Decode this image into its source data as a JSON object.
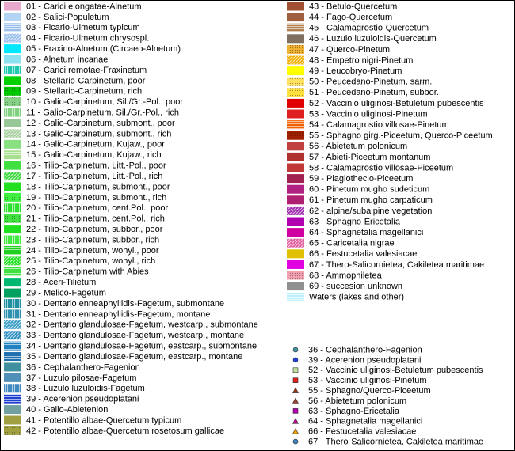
{
  "left_column": [
    {
      "label": "01 - Carici elongatae-Alnetum",
      "color": "#e8a8cc"
    },
    {
      "label": "02 - Salici-Populetum",
      "color": "#b4d4f4"
    },
    {
      "label": "03 - Ficario-Ulmetum typicum",
      "color": "#9cc0ee",
      "pattern": "h"
    },
    {
      "label": "04 - Ficario-Ulmetum chrysospl.",
      "color": "#9cc0ee",
      "pattern": "d"
    },
    {
      "label": "05 - Fraxino-Alnetum (Circaeo-Alnetum)",
      "color": "#00e8ff"
    },
    {
      "label": "06 - Alnetum incanae",
      "color": "#8ce0f0"
    },
    {
      "label": "07 - Carici remotae-Fraxinetum",
      "color": "#20c8b0",
      "pattern": "v"
    },
    {
      "label": "08 - Stellario-Carpinetum, poor",
      "color": "#00d000"
    },
    {
      "label": "09 - Stellario-Carpinetum, rich",
      "color": "#00c800",
      "pattern": "dots"
    },
    {
      "label": "10 - Galio-Carpinetum, Sil./Gr.-Pol., poor",
      "color": "#88d088",
      "pattern": "dots"
    },
    {
      "label": "11 - Galio-Carpinetum, Sil./Gr.-Pol., rich",
      "color": "#80d080",
      "pattern": "v"
    },
    {
      "label": "12 - Galio-Carpinetum, submont., poor",
      "color": "#98c898"
    },
    {
      "label": "13 - Galio-Carpinetum, submont., rich",
      "color": "#a8d0a0",
      "pattern": "d"
    },
    {
      "label": "14 - Galio-Carpinetum, Kujaw., poor",
      "color": "#88e080"
    },
    {
      "label": "15 - Galio-Carpinetum, Kujaw., rich",
      "color": "#a8e090",
      "pattern": "h"
    },
    {
      "label": "16 - Tilio-Carpinetum, Litt.-Pol., poor",
      "color": "#40e040"
    },
    {
      "label": "17 - Tilio-Carpinetum, Litt.-Pol., rich",
      "color": "#40d840",
      "pattern": "d"
    },
    {
      "label": "18 - Tilio-Carpinetum, submont., poor",
      "color": "#20e020"
    },
    {
      "label": "19 - Tilio-Carpinetum, submont., rich",
      "color": "#40f040",
      "pattern": "dots"
    },
    {
      "label": "20 - Tilio-Carpinetum, cent.Pol., poor",
      "color": "#30e030",
      "pattern": "v"
    },
    {
      "label": "21 - Tilio-Carpinetum, cent.Pol., rich",
      "color": "#40e040",
      "pattern": "dots"
    },
    {
      "label": "22 - Tilio-Carpinetum, subbor., poor",
      "color": "#20e020"
    },
    {
      "label": "23 - Tilio-Carpinetum, subbor., rich",
      "color": "#40e840",
      "pattern": "v"
    },
    {
      "label": "24 - Tilio-Carpinetum, wohyl., poor",
      "color": "#20d020",
      "pattern": "h"
    },
    {
      "label": "25 - Tilio-Carpinetum, wohyl., rich",
      "color": "#20e020",
      "pattern": "d"
    },
    {
      "label": "26 - Tilio-Carpinetum with Abies",
      "color": "#40e040",
      "pattern": "h"
    },
    {
      "label": "28 - Aceri-Tilietum",
      "color": "#00b870"
    },
    {
      "label": "29 - Melico-Fagetum",
      "color": "#00a060"
    },
    {
      "label": "30 - Dentario enneaphyllidis-Fagetum, submontane",
      "color": "#2090a0",
      "pattern": "v"
    },
    {
      "label": "31 - Dentario enneaphyllidis-Fagetum, montane",
      "color": "#3090b0",
      "pattern": "v"
    },
    {
      "label": "32 - Dentario glandulosae-Fagetum, westcarp., submontane",
      "color": "#40a0c8",
      "pattern": "d"
    },
    {
      "label": "33 - Dentario glandulosae-Fagetum, westcarp., montane",
      "color": "#3090c0",
      "pattern": "d"
    },
    {
      "label": "34 - Dentario glandulosae-Fagetum, eastcarp., submontane",
      "color": "#2080c0",
      "pattern": "h"
    },
    {
      "label": "35 - Dentario glandulosae-Fagetum, eastcarp., montane",
      "color": "#2070b0",
      "pattern": "h"
    },
    {
      "label": "36 - Cephalanthero-Fagenion",
      "color": "#4090a0"
    },
    {
      "label": "37 - Luzulo pilosae-Fagetum",
      "color": "#5090b8"
    },
    {
      "label": "38 - Luzulo luzuloidis-Fagetum",
      "color": "#4088c0",
      "pattern": "v"
    },
    {
      "label": "39 - Acerenion pseudoplatani",
      "color": "#2040d0",
      "pattern": "h"
    },
    {
      "label": "40 - Galio-Abietenion",
      "color": "#70a0a0"
    },
    {
      "label": "41 - Potentillo albae-Quercetum typicum",
      "color": "#a0a040"
    },
    {
      "label": "42 - Potentillo albae-Quercetum rosetosum gallicae",
      "color": "#a0a040",
      "pattern": "dots"
    }
  ],
  "right_column": [
    {
      "label": "43 - Betulo-Quercetum",
      "color": "#a05030"
    },
    {
      "label": "44 - Fago-Quercetum",
      "color": "#a06040"
    },
    {
      "label": "45 - Calamagrostio-Quercetum",
      "color": "#b08050",
      "pattern": "h"
    },
    {
      "label": "46 - Luzulo luzuloidis-Quercetum",
      "color": "#807060"
    },
    {
      "label": "47 - Querco-Pinetum",
      "color": "#f0b030",
      "pattern": "dots"
    },
    {
      "label": "48 - Empetro nigri-Pinetum",
      "color": "#f0b000",
      "pattern": "d"
    },
    {
      "label": "49 - Leucobryo-Pinetum",
      "color": "#ffff00"
    },
    {
      "label": "50 - Peucedano-Pinetum, sarm.",
      "color": "#ffe060",
      "pattern": "dots"
    },
    {
      "label": "51 - Peucedano-Pinetum, subbor.",
      "color": "#ffe040",
      "pattern": "dots"
    },
    {
      "label": "52 - Vaccinio uliginosi-Betuletum pubescentis",
      "color": "#e00000"
    },
    {
      "label": "53 - Vaccinio uliginosi-Pinetum",
      "color": "#e02020"
    },
    {
      "label": "54 - Calamagrostio villosae-Pinetum",
      "color": "#f06000",
      "pattern": "h"
    },
    {
      "label": "55 - Sphagno girg.-Piceetum, Querco-Piceetum",
      "color": "#a02000",
      "pattern": "dots"
    },
    {
      "label": "56 - Abietetum polonicum",
      "color": "#c04040"
    },
    {
      "label": "57 - Abieti-Piceetum montanum",
      "color": "#b03030"
    },
    {
      "label": "58 - Calamagrostio villosae-Piceetum",
      "color": "#c03838"
    },
    {
      "label": "59 - Plagiothecio-Piceetum",
      "color": "#a02050"
    },
    {
      "label": "60 - Pinetum mugho sudeticum",
      "color": "#b02080"
    },
    {
      "label": "61 - Pinetum mugho carpaticum",
      "color": "#b02070"
    },
    {
      "label": "62 - alpine/subalpine vegetation",
      "color": "#a030b0",
      "pattern": "d"
    },
    {
      "label": "63 - Sphagno-Ericetalia",
      "color": "#b000b0"
    },
    {
      "label": "64 - Sphagnetalia magellanici",
      "color": "#d000a0"
    },
    {
      "label": "65 - Caricetalia nigrae",
      "color": "#e060a0",
      "pattern": "d"
    },
    {
      "label": "66 - Festucetalia valesiacae",
      "color": "#e0c000"
    },
    {
      "label": "67 - Thero-Salicornietea, Cakiletea maritimae",
      "color": "#e000e0"
    },
    {
      "label": "68 - Ammophiletea",
      "color": "#f0a0b0",
      "pattern": "dots"
    },
    {
      "label": "69 - succesion unknown",
      "color": "#909090"
    },
    {
      "label": "Waters (lakes and other)",
      "color": "#c0f0ff",
      "pattern": "h"
    }
  ],
  "symbol_legend": [
    {
      "label": "36 - Cephalanthero-Fagenion",
      "color": "#4090a0",
      "shape": "circle"
    },
    {
      "label": "39 - Acerenion pseudoplatani",
      "color": "#2040d0",
      "shape": "circle"
    },
    {
      "label": "52 - Vaccinio uliginosi-Betuletum pubescentis",
      "color": "#c0e0a0",
      "shape": "square"
    },
    {
      "label": "53 - Vaccinio uliginosi-Pinetum",
      "color": "#e02020",
      "shape": "square"
    },
    {
      "label": "55 - Sphagno/Querco-Piceetum",
      "color": "#a03010",
      "shape": "triangle"
    },
    {
      "label": "56 - Abietetum polonicum",
      "color": "#a04030",
      "shape": "triangle"
    },
    {
      "label": "63 - Sphagno-Ericetalia",
      "color": "#b000b0",
      "shape": "square"
    },
    {
      "label": "64 - Sphagnetalia magellanici",
      "color": "#d000a0",
      "shape": "triangle"
    },
    {
      "label": "66 - Festucetalia valesiacae",
      "color": "#f0a000",
      "shape": "triangle"
    },
    {
      "label": "67 - Thero-Salicornietea,  Cakiletea maritimae",
      "color": "#4080c0",
      "shape": "circle"
    }
  ]
}
